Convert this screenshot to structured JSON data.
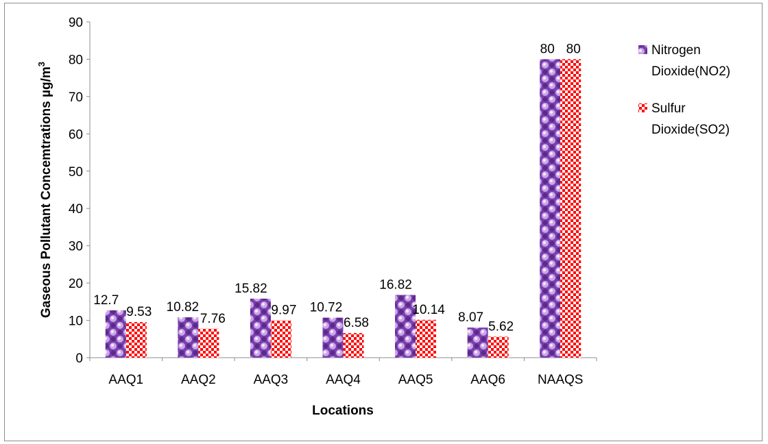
{
  "chart_data": {
    "type": "bar",
    "categories": [
      "AAQ1",
      "AAQ2",
      "AAQ3",
      "AAQ4",
      "AAQ5",
      "AAQ6",
      "NAAQS"
    ],
    "series": [
      {
        "name": "Nitrogen Dioxide(NO2)",
        "legend_lines": [
          "Nitrogen",
          "Dioxide(NO2)"
        ],
        "values": [
          12.7,
          10.82,
          15.82,
          10.72,
          16.82,
          8.07,
          80
        ],
        "labels": [
          "12.7",
          "10.82",
          "15.82",
          "10.72",
          "16.82",
          "8.07",
          "80"
        ],
        "color": "#7030a0",
        "pattern": "spheres"
      },
      {
        "name": "Sulfur Dioxide(SO2)",
        "legend_lines": [
          "Sulfur",
          "Dioxide(SO2)"
        ],
        "values": [
          9.53,
          7.76,
          9.97,
          6.58,
          10.14,
          5.62,
          80
        ],
        "labels": [
          "9.53",
          "7.76",
          "9.97",
          "6.58",
          "10.14",
          "5.62",
          "80"
        ],
        "color": "#ff0000",
        "pattern": "checker"
      }
    ],
    "title": "",
    "xlabel": "Locations",
    "ylabel": "Gaseous Pollutant Concemtrations µg/m",
    "ylabel_superscript": "3",
    "ylim": [
      0,
      90
    ],
    "yticks": [
      0,
      10,
      20,
      30,
      40,
      50,
      60,
      70,
      80,
      90
    ],
    "grid": false,
    "legend_position": "right"
  }
}
